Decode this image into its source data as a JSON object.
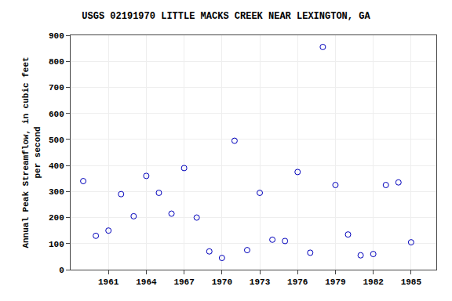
{
  "chart_data": {
    "type": "scatter",
    "title": "USGS 02191970 LITTLE MACKS CREEK NEAR LEXINGTON, GA",
    "ylabel": "Annual Peak Streamflow, in cubic feet\nper second",
    "x": [
      1959,
      1960,
      1961,
      1962,
      1963,
      1964,
      1965,
      1966,
      1967,
      1968,
      1969,
      1970,
      1971,
      1972,
      1973,
      1974,
      1975,
      1976,
      1977,
      1978,
      1979,
      1980,
      1981,
      1982,
      1983,
      1984,
      1985
    ],
    "values": [
      340,
      130,
      150,
      290,
      205,
      360,
      295,
      215,
      390,
      200,
      70,
      45,
      495,
      75,
      295,
      115,
      110,
      375,
      65,
      855,
      325,
      135,
      55,
      60,
      325,
      335,
      105
    ],
    "color": "#0000bb",
    "marker": "circle-open",
    "xlim": [
      1958,
      1987
    ],
    "ylim": [
      0,
      900
    ],
    "xticks": [
      1961,
      1964,
      1967,
      1970,
      1973,
      1976,
      1979,
      1982,
      1985
    ],
    "yticks": [
      0,
      100,
      200,
      300,
      400,
      500,
      600,
      700,
      800,
      900
    ],
    "grid": true
  }
}
